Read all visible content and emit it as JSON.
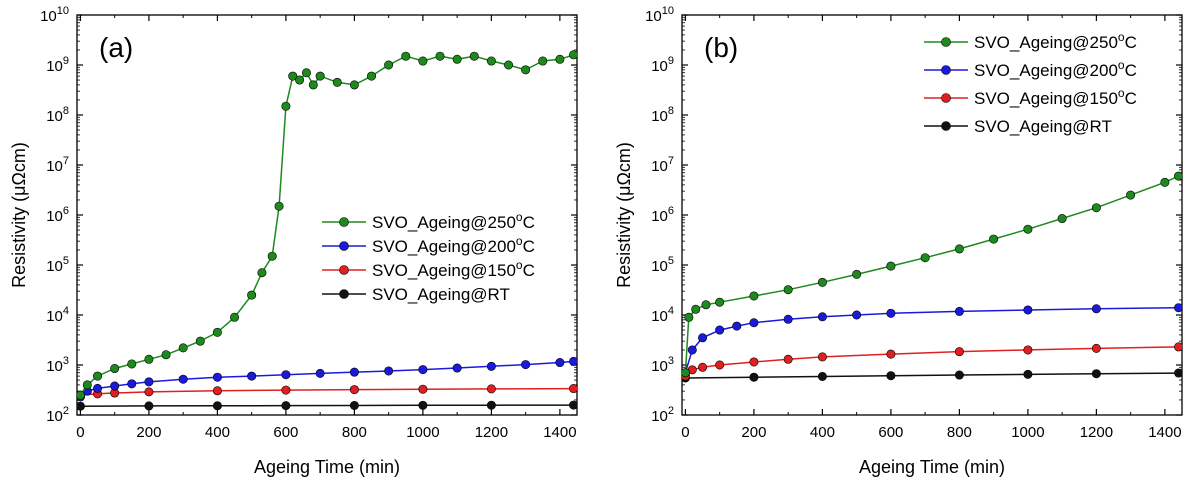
{
  "chart_data": [
    {
      "type": "line",
      "panel_label": "(a)",
      "xlabel": "Ageing Time (min)",
      "ylabel": "Resistivity (μΩcm)",
      "yscale": "log",
      "xlim": [
        -10,
        1450
      ],
      "ylim": [
        100,
        10000000000
      ],
      "xticks": [
        0,
        200,
        400,
        600,
        800,
        1000,
        1200,
        1400
      ],
      "xtick_labels": [
        "0",
        "200",
        "400",
        "600",
        "800",
        "1000",
        "1200",
        "1400"
      ],
      "yticks": [
        {
          "value": 100,
          "base": "10",
          "exp": "2"
        },
        {
          "value": 1000,
          "base": "10",
          "exp": "3"
        },
        {
          "value": 10000,
          "base": "10",
          "exp": "4"
        },
        {
          "value": 100000,
          "base": "10",
          "exp": "5"
        },
        {
          "value": 1000000,
          "base": "10",
          "exp": "6"
        },
        {
          "value": 10000000,
          "base": "10",
          "exp": "7"
        },
        {
          "value": 100000000,
          "base": "10",
          "exp": "8"
        },
        {
          "value": 1000000000,
          "base": "10",
          "exp": "9"
        },
        {
          "value": 10000000000,
          "base": "10",
          "exp": "10"
        }
      ],
      "legend_position": "middle-right",
      "series": [
        {
          "name": "SVO_Ageing@250",
          "name_sup": "o",
          "name_suffix": "C",
          "color": "#1e8a1e",
          "x": [
            0,
            20,
            50,
            100,
            150,
            200,
            250,
            300,
            350,
            400,
            450,
            500,
            530,
            560,
            580,
            600,
            620,
            640,
            660,
            680,
            700,
            750,
            800,
            850,
            900,
            950,
            1000,
            1050,
            1100,
            1150,
            1200,
            1250,
            1300,
            1350,
            1400,
            1440
          ],
          "y": [
            250,
            400,
            600,
            850,
            1050,
            1300,
            1600,
            2200,
            3000,
            4500,
            9000,
            25000,
            70000,
            150000,
            1500000,
            150000000,
            600000000,
            500000000,
            700000000,
            400000000,
            600000000,
            450000000,
            400000000,
            600000000,
            1000000000,
            1500000000,
            1200000000,
            1500000000,
            1300000000,
            1500000000,
            1200000000,
            1000000000,
            800000000,
            1200000000,
            1300000000,
            1600000000
          ]
        },
        {
          "name": "SVO_Ageing@200",
          "name_sup": "o",
          "name_suffix": "C",
          "color": "#1a1adb",
          "x": [
            0,
            20,
            50,
            100,
            150,
            200,
            300,
            400,
            500,
            600,
            700,
            800,
            900,
            1000,
            1100,
            1200,
            1300,
            1400,
            1440
          ],
          "y": [
            230,
            300,
            340,
            380,
            420,
            460,
            520,
            570,
            600,
            640,
            680,
            720,
            760,
            810,
            870,
            940,
            1020,
            1120,
            1180
          ]
        },
        {
          "name": "SVO_Ageing@150",
          "name_sup": "o",
          "name_suffix": "C",
          "color": "#e02020",
          "x": [
            0,
            50,
            100,
            200,
            400,
            600,
            800,
            1000,
            1200,
            1440
          ],
          "y": [
            250,
            265,
            275,
            290,
            305,
            315,
            322,
            328,
            333,
            338
          ]
        },
        {
          "name": "SVO_Ageing@RT",
          "name_sup": "",
          "name_suffix": "",
          "color": "#111111",
          "x": [
            0,
            200,
            400,
            600,
            800,
            1000,
            1200,
            1440
          ],
          "y": [
            150,
            152,
            153,
            154,
            155,
            156,
            157,
            158
          ]
        }
      ]
    },
    {
      "type": "line",
      "panel_label": "(b)",
      "xlabel": "Ageing Time (min)",
      "ylabel": "Resistivity (μΩcm)",
      "yscale": "log",
      "xlim": [
        -10,
        1450
      ],
      "ylim": [
        100,
        10000000000
      ],
      "xticks": [
        0,
        200,
        400,
        600,
        800,
        1000,
        1200,
        1400
      ],
      "xtick_labels": [
        "0",
        "200",
        "400",
        "600",
        "800",
        "1000",
        "1200",
        "1400"
      ],
      "yticks": [
        {
          "value": 100,
          "base": "10",
          "exp": "2"
        },
        {
          "value": 1000,
          "base": "10",
          "exp": "3"
        },
        {
          "value": 10000,
          "base": "10",
          "exp": "4"
        },
        {
          "value": 100000,
          "base": "10",
          "exp": "5"
        },
        {
          "value": 1000000,
          "base": "10",
          "exp": "6"
        },
        {
          "value": 10000000,
          "base": "10",
          "exp": "7"
        },
        {
          "value": 100000000,
          "base": "10",
          "exp": "8"
        },
        {
          "value": 1000000000,
          "base": "10",
          "exp": "9"
        },
        {
          "value": 10000000000,
          "base": "10",
          "exp": "10"
        }
      ],
      "legend_position": "top-right",
      "series": [
        {
          "name": "SVO_Ageing@250",
          "name_sup": "o",
          "name_suffix": "C",
          "color": "#1e8a1e",
          "x": [
            0,
            10,
            30,
            60,
            100,
            200,
            300,
            400,
            500,
            600,
            700,
            800,
            900,
            1000,
            1100,
            1200,
            1300,
            1400,
            1440
          ],
          "y": [
            700,
            9000,
            13000,
            16000,
            18000,
            24000,
            32000,
            45000,
            65000,
            95000,
            140000,
            210000,
            330000,
            520000,
            850000,
            1400000,
            2500000,
            4500000,
            6000000
          ]
        },
        {
          "name": "SVO_Ageing@200",
          "name_sup": "o",
          "name_suffix": "C",
          "color": "#1a1adb",
          "x": [
            0,
            20,
            50,
            100,
            150,
            200,
            300,
            400,
            500,
            600,
            800,
            1000,
            1200,
            1440
          ],
          "y": [
            700,
            2000,
            3500,
            5000,
            6000,
            7000,
            8200,
            9200,
            10000,
            10800,
            11800,
            12600,
            13300,
            14000
          ]
        },
        {
          "name": "SVO_Ageing@150",
          "name_sup": "o",
          "name_suffix": "C",
          "color": "#e02020",
          "x": [
            0,
            20,
            50,
            100,
            200,
            300,
            400,
            600,
            800,
            1000,
            1200,
            1440
          ],
          "y": [
            600,
            800,
            900,
            1000,
            1150,
            1300,
            1450,
            1650,
            1850,
            2000,
            2150,
            2300
          ]
        },
        {
          "name": "SVO_Ageing@RT",
          "name_sup": "",
          "name_suffix": "",
          "color": "#111111",
          "x": [
            0,
            200,
            400,
            600,
            800,
            1000,
            1200,
            1440
          ],
          "y": [
            550,
            570,
            590,
            610,
            630,
            650,
            670,
            690
          ]
        }
      ]
    }
  ]
}
